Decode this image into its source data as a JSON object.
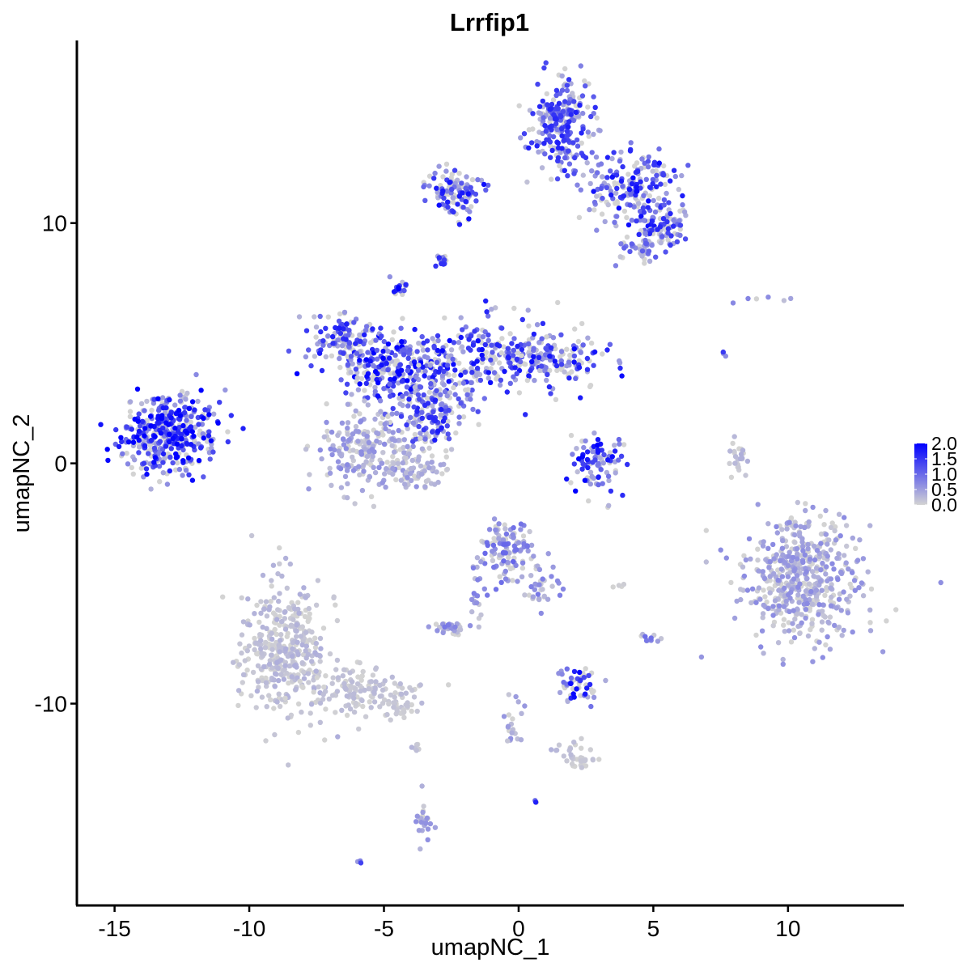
{
  "chart_data": {
    "type": "scatter",
    "title": "Lrrfip1",
    "xlabel": "umapNC_1",
    "ylabel": "umapNC_2",
    "xlim": [
      -16.4,
      14.3
    ],
    "ylim": [
      -18.4,
      17.6
    ],
    "x_ticks": [
      -15,
      -10,
      -5,
      0,
      5,
      10
    ],
    "x_tick_labels": [
      "-15",
      "-10",
      "-5",
      "0",
      "5",
      "10"
    ],
    "y_ticks": [
      -10,
      0,
      10
    ],
    "y_tick_labels": [
      "-10",
      "0",
      "10"
    ],
    "grid": false,
    "legend": {
      "placement": "right",
      "type": "colorbar",
      "min": 0,
      "max": 2,
      "ticks": [
        0,
        0.5,
        1,
        1.5,
        2
      ],
      "tick_labels": [
        "0.0",
        "0.5",
        "1.0",
        "1.5",
        "2.0"
      ]
    },
    "colors": {
      "low": "#d3d3d3",
      "high": "#0000ff"
    },
    "clusters": [
      {
        "center": [
          -13.0,
          1.2
        ],
        "spread": [
          0.9,
          0.8
        ],
        "n": 420,
        "expression": 1.3
      },
      {
        "center": [
          -4.5,
          4.0
        ],
        "spread": [
          1.3,
          0.6
        ],
        "n": 260,
        "expression": 1.2
      },
      {
        "center": [
          -6.5,
          5.2
        ],
        "spread": [
          0.8,
          0.5
        ],
        "n": 120,
        "expression": 1.0
      },
      {
        "center": [
          -1.0,
          4.5
        ],
        "spread": [
          1.2,
          0.9
        ],
        "n": 200,
        "expression": 1.1
      },
      {
        "center": [
          1.5,
          4.3
        ],
        "spread": [
          0.9,
          0.5
        ],
        "n": 140,
        "expression": 1.1
      },
      {
        "center": [
          -3.2,
          2.2
        ],
        "spread": [
          0.7,
          0.8
        ],
        "n": 180,
        "expression": 1.0
      },
      {
        "center": [
          -5.6,
          0.6
        ],
        "spread": [
          0.9,
          0.9
        ],
        "n": 220,
        "expression": 0.4
      },
      {
        "center": [
          -3.8,
          -0.3
        ],
        "spread": [
          0.6,
          0.4
        ],
        "n": 60,
        "expression": 0.3
      },
      {
        "center": [
          -4.4,
          7.3
        ],
        "spread": [
          0.15,
          0.2
        ],
        "n": 18,
        "expression": 1.2
      },
      {
        "center": [
          1.6,
          14.0
        ],
        "spread": [
          0.6,
          1.0
        ],
        "n": 260,
        "expression": 1.0
      },
      {
        "center": [
          4.2,
          11.4
        ],
        "spread": [
          0.8,
          0.8
        ],
        "n": 200,
        "expression": 1.1
      },
      {
        "center": [
          5.4,
          9.8
        ],
        "spread": [
          0.4,
          0.4
        ],
        "n": 70,
        "expression": 1.0
      },
      {
        "center": [
          -2.4,
          11.3
        ],
        "spread": [
          0.5,
          0.5
        ],
        "n": 110,
        "expression": 1.1
      },
      {
        "center": [
          4.6,
          8.9
        ],
        "spread": [
          0.4,
          0.3
        ],
        "n": 40,
        "expression": 0.7
      },
      {
        "center": [
          -2.8,
          8.5
        ],
        "spread": [
          0.12,
          0.15
        ],
        "n": 14,
        "expression": 0.9
      },
      {
        "center": [
          2.9,
          0.0
        ],
        "spread": [
          0.5,
          0.6
        ],
        "n": 90,
        "expression": 1.2
      },
      {
        "center": [
          8.1,
          0.4
        ],
        "spread": [
          0.2,
          0.5
        ],
        "n": 25,
        "expression": 0.2
      },
      {
        "center": [
          10.6,
          -4.8
        ],
        "spread": [
          1.1,
          1.3
        ],
        "n": 520,
        "expression": 0.4
      },
      {
        "center": [
          -8.6,
          -7.6
        ],
        "spread": [
          0.9,
          1.4
        ],
        "n": 380,
        "expression": 0.2
      },
      {
        "center": [
          -6.0,
          -9.4
        ],
        "spread": [
          1.0,
          0.5
        ],
        "n": 140,
        "expression": 0.15
      },
      {
        "center": [
          -4.3,
          -10.2
        ],
        "spread": [
          0.3,
          0.2
        ],
        "n": 25,
        "expression": 0.1
      },
      {
        "center": [
          -0.4,
          -3.6
        ],
        "spread": [
          0.5,
          0.6
        ],
        "n": 120,
        "expression": 0.6
      },
      {
        "center": [
          0.8,
          -5.1
        ],
        "spread": [
          0.4,
          0.4
        ],
        "n": 35,
        "expression": 0.5
      },
      {
        "center": [
          -1.6,
          -5.8
        ],
        "spread": [
          0.2,
          0.6
        ],
        "n": 20,
        "expression": 0.5
      },
      {
        "center": [
          -2.6,
          -6.9
        ],
        "spread": [
          0.3,
          0.2
        ],
        "n": 30,
        "expression": 0.5
      },
      {
        "center": [
          2.3,
          -9.2
        ],
        "spread": [
          0.4,
          0.4
        ],
        "n": 55,
        "expression": 1.2
      },
      {
        "center": [
          4.9,
          -7.3
        ],
        "spread": [
          0.2,
          0.15
        ],
        "n": 12,
        "expression": 0.6
      },
      {
        "center": [
          -0.2,
          -10.8
        ],
        "spread": [
          0.2,
          0.5
        ],
        "n": 22,
        "expression": 0.4
      },
      {
        "center": [
          2.3,
          -12.4
        ],
        "spread": [
          0.3,
          0.15
        ],
        "n": 25,
        "expression": 0.1
      },
      {
        "center": [
          -3.5,
          -14.8
        ],
        "spread": [
          0.15,
          0.5
        ],
        "n": 22,
        "expression": 0.4
      },
      {
        "center": [
          -3.9,
          -11.8
        ],
        "spread": [
          0.1,
          0.15
        ],
        "n": 6,
        "expression": 0.2
      },
      {
        "center": [
          -5.9,
          -16.5
        ],
        "spread": [
          0.05,
          0.05
        ],
        "n": 3,
        "expression": 0.9
      },
      {
        "center": [
          0.6,
          -14.1
        ],
        "spread": [
          0.05,
          0.05
        ],
        "n": 3,
        "expression": 1.3
      },
      {
        "center": [
          7.6,
          4.7
        ],
        "spread": [
          0.05,
          0.1
        ],
        "n": 3,
        "expression": 1.2
      },
      {
        "center": [
          9.1,
          6.8
        ],
        "spread": [
          0.6,
          0.1
        ],
        "n": 6,
        "expression": 0.5
      },
      {
        "center": [
          3.7,
          -5.1
        ],
        "spread": [
          0.1,
          0.03
        ],
        "n": 4,
        "expression": 0.1
      },
      {
        "center": [
          1.3,
          -11.7
        ],
        "spread": [
          0.8,
          0.2
        ],
        "n": 14,
        "expression": 0.2
      }
    ]
  }
}
